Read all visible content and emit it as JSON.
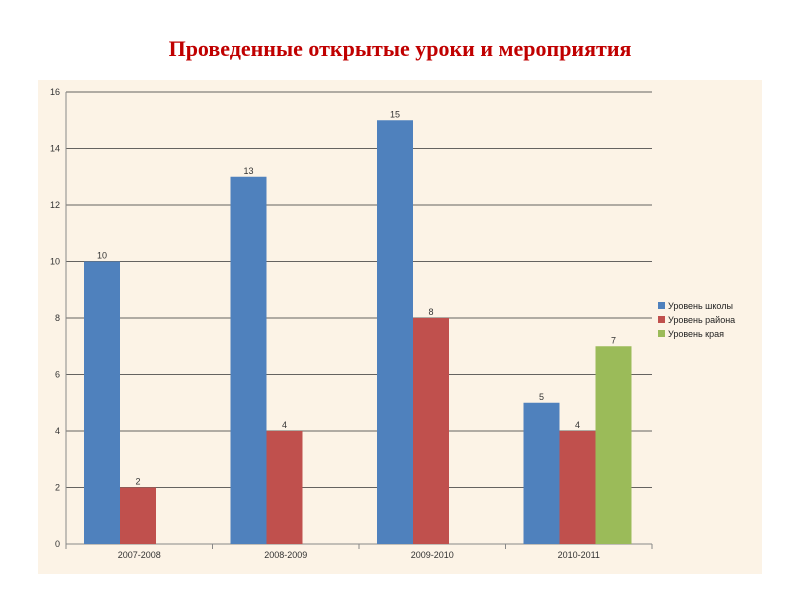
{
  "title": "Проведенные открытые уроки и мероприятия",
  "chart_data": {
    "type": "bar",
    "title": "Проведенные открытые уроки и мероприятия",
    "categories": [
      "2007-2008",
      "2008-2009",
      "2009-2010",
      "2010-2011"
    ],
    "series": [
      {
        "name": "Уровень школы",
        "color": "#4f81bd",
        "values": [
          10,
          13,
          15,
          5
        ]
      },
      {
        "name": "Уровень района",
        "color": "#c0504d",
        "values": [
          2,
          4,
          8,
          4
        ]
      },
      {
        "name": "Уровень края",
        "color": "#9bbb59",
        "values": [
          null,
          null,
          null,
          7
        ]
      }
    ],
    "ylim": [
      0,
      16
    ],
    "yticks": [
      0,
      2,
      4,
      6,
      8,
      10,
      12,
      14,
      16
    ],
    "xlabel": "",
    "ylabel": "",
    "grid": true,
    "legend": "right"
  }
}
